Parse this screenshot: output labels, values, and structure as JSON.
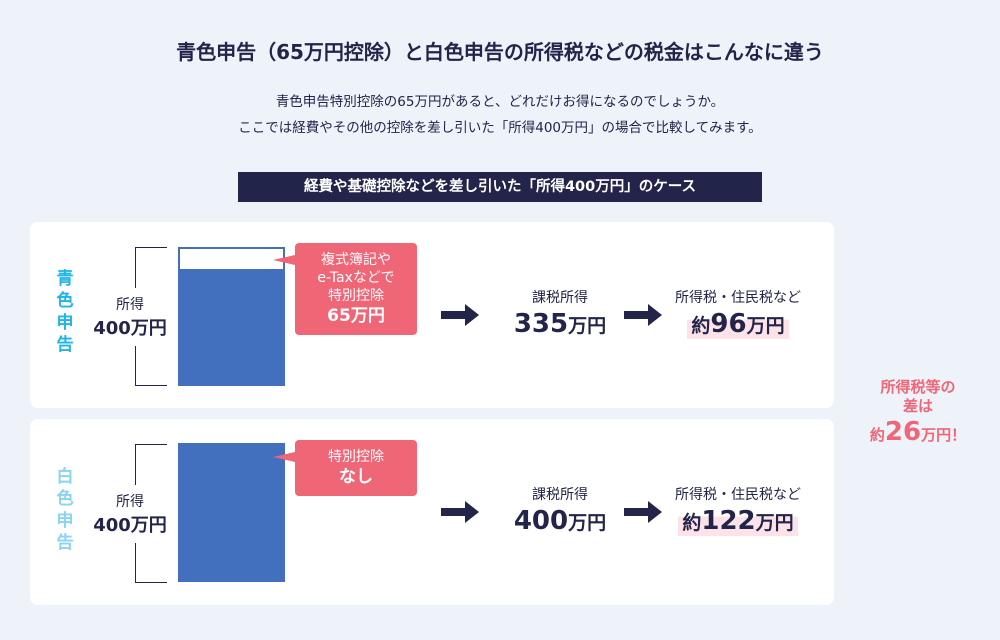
{
  "title": "青色申告（65万円控除）と白色申告の所得税などの税金はこんなに違う",
  "subtitle_lines": [
    "青色申告特別控除の65万円があると、どれだけお得になるのでしょうか。",
    "ここでは経費やその他の控除を差し引いた「所得400万円」の場合で比較してみます。"
  ],
  "banner": "経費や基礎控除などを差し引いた「所得400万円」のケース",
  "colors": {
    "navy": "#22244a",
    "blue_label": "#1fb5e8",
    "white_label": "#8ad3f2",
    "bar": "#4270bf",
    "pink": "#ef6677",
    "highlight": "#fde3e7",
    "background": "#eef2f9"
  },
  "aoiro": {
    "label": "青色申告",
    "income_label": "所得",
    "income_value": "400万円",
    "deduction_fraction": 0.1625,
    "callout_lines": [
      "複式簿記や",
      "e-Taxなどで",
      "特別控除"
    ],
    "callout_amount": "65万円",
    "taxable_label": "課税所得",
    "taxable_num": "335",
    "taxable_unit": "万円",
    "tax_label": "所得税・住民税など",
    "tax_prefix": "約",
    "tax_num": "96",
    "tax_unit": "万円"
  },
  "shiro": {
    "label": "白色申告",
    "income_label": "所得",
    "income_value": "400万円",
    "deduction_fraction": 0,
    "callout_lines": [
      "特別控除"
    ],
    "callout_amount": "なし",
    "taxable_label": "課税所得",
    "taxable_num": "400",
    "taxable_unit": "万円",
    "tax_label": "所得税・住民税など",
    "tax_prefix": "約",
    "tax_num": "122",
    "tax_unit": "万円"
  },
  "difference": {
    "line1": "所得税等の",
    "line2": "差は",
    "prefix": "約",
    "num": "26",
    "suffix": "万円！"
  },
  "icons": {
    "arrow": "arrow-right-icon"
  }
}
